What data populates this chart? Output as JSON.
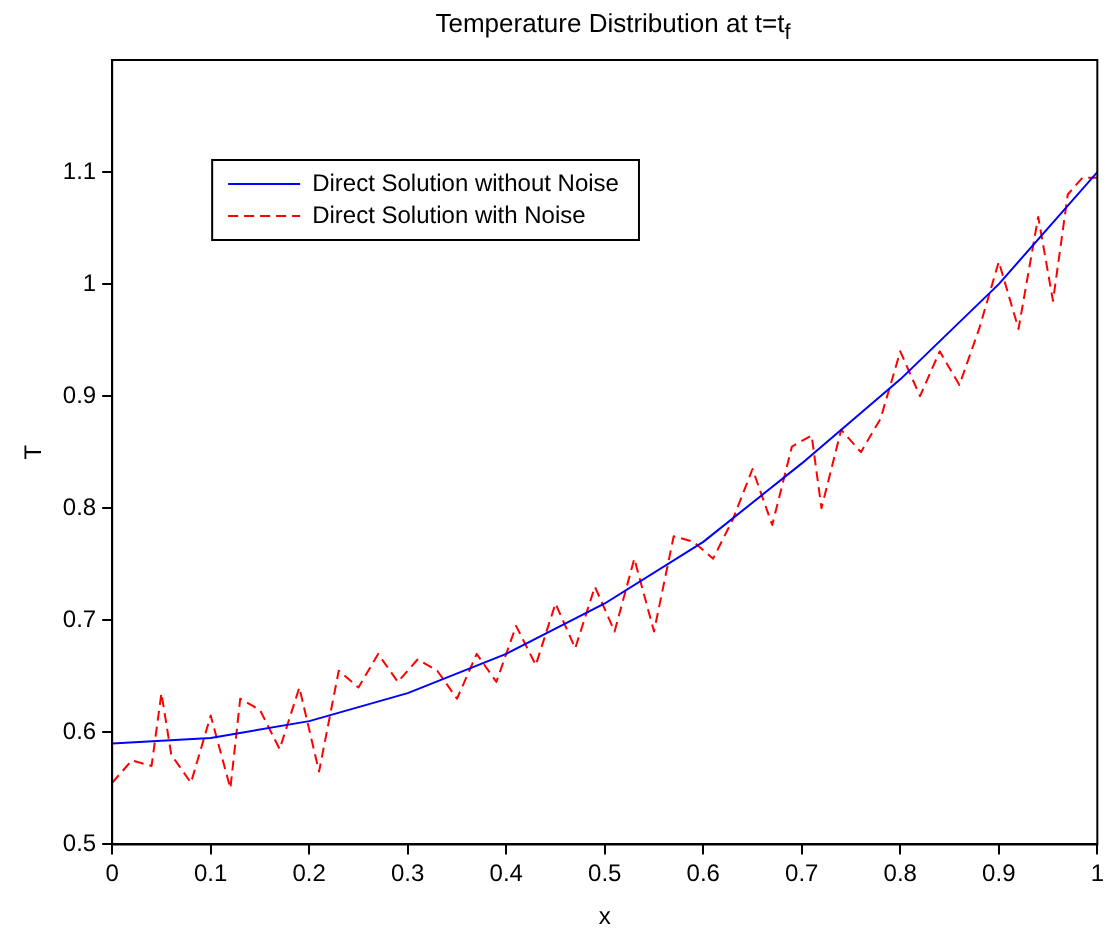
{
  "chart_data": {
    "type": "line",
    "title": "Temperature Distribution at t=t$_{f}$",
    "xlabel": "x",
    "ylabel": "T",
    "xlim": [
      0,
      1
    ],
    "xticks": [
      0,
      0.1,
      0.2,
      0.3,
      0.4,
      0.5,
      0.6,
      0.7,
      0.8,
      0.9,
      1
    ],
    "ylim": [
      0.5,
      1.2
    ],
    "yticks": [
      0.5,
      0.6,
      0.7,
      0.8,
      0.9,
      1,
      1.1
    ],
    "grid": false,
    "legend": "top left",
    "marker": "none",
    "series": [
      {
        "name": "Direct Solution without Noise",
        "color": "#0000ff",
        "line_style": "solid",
        "x": [
          0,
          0.1,
          0.2,
          0.3,
          0.4,
          0.5,
          0.6,
          0.7,
          0.8,
          0.9,
          1
        ],
        "values": [
          0.59,
          0.595,
          0.61,
          0.635,
          0.67,
          0.715,
          0.77,
          0.84,
          0.915,
          1.0,
          1.1
        ]
      },
      {
        "name": "Direct Solution with Noise",
        "color": "#ff0000",
        "line_style": "dashed",
        "x": [
          0,
          0.02,
          0.04,
          0.05,
          0.06,
          0.08,
          0.1,
          0.12,
          0.13,
          0.15,
          0.17,
          0.19,
          0.21,
          0.23,
          0.25,
          0.27,
          0.29,
          0.31,
          0.33,
          0.35,
          0.37,
          0.39,
          0.41,
          0.43,
          0.45,
          0.47,
          0.49,
          0.51,
          0.53,
          0.55,
          0.57,
          0.59,
          0.61,
          0.63,
          0.65,
          0.67,
          0.69,
          0.71,
          0.72,
          0.74,
          0.76,
          0.78,
          0.8,
          0.82,
          0.84,
          0.86,
          0.88,
          0.9,
          0.92,
          0.94,
          0.955,
          0.97,
          0.985,
          1
        ],
        "values": [
          0.555,
          0.575,
          0.57,
          0.635,
          0.58,
          0.555,
          0.615,
          0.55,
          0.63,
          0.62,
          0.585,
          0.64,
          0.565,
          0.655,
          0.64,
          0.67,
          0.645,
          0.665,
          0.655,
          0.63,
          0.67,
          0.645,
          0.695,
          0.66,
          0.715,
          0.675,
          0.73,
          0.69,
          0.755,
          0.69,
          0.775,
          0.77,
          0.755,
          0.79,
          0.835,
          0.785,
          0.855,
          0.865,
          0.8,
          0.87,
          0.85,
          0.88,
          0.94,
          0.9,
          0.94,
          0.91,
          0.96,
          1.02,
          0.96,
          1.06,
          0.985,
          1.08,
          1.095,
          1.095
        ]
      }
    ]
  }
}
